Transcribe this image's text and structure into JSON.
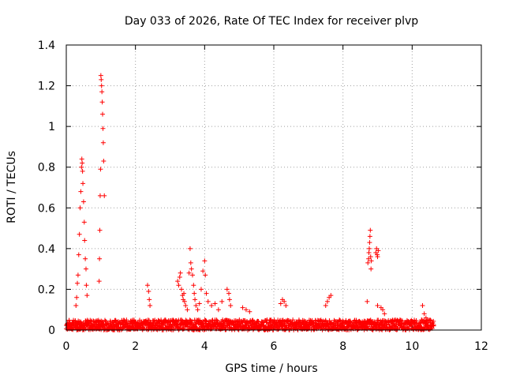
{
  "chart_data": {
    "type": "scatter",
    "title": "Day 033 of 2026, Rate Of TEC Index for receiver plvp",
    "xlabel": "GPS time / hours",
    "ylabel": "ROTI / TECUs",
    "xlim": [
      0,
      12
    ],
    "ylim": [
      0,
      1.4
    ],
    "xticks": [
      0,
      2,
      4,
      6,
      8,
      10,
      12
    ],
    "yticks": [
      0,
      0.2,
      0.4,
      0.6,
      0.8,
      1,
      1.2,
      1.4
    ],
    "xtick_labels": [
      "0",
      "2",
      "4",
      "6",
      "8",
      "10",
      "12"
    ],
    "ytick_labels": [
      "0",
      "0.2",
      "0.4",
      "0.6",
      "0.8",
      "1",
      "1.2",
      "1.4"
    ],
    "grid": true,
    "marker": "+",
    "color": "#ff0000",
    "series": [
      {
        "x": [
          0.4,
          0.42,
          0.44,
          0.45,
          0.46,
          0.47,
          0.48,
          0.5,
          0.52,
          0.53,
          0.55,
          0.57,
          0.58,
          0.6,
          0.38,
          0.36,
          0.34,
          0.32,
          0.3,
          0.28,
          1.0,
          1.01,
          1.02,
          1.03,
          1.04,
          1.05,
          1.06,
          1.07,
          1.08,
          1.1,
          0.99,
          0.98,
          0.97,
          0.96,
          0.95,
          2.35,
          2.38,
          2.4,
          2.42,
          3.22,
          3.25,
          3.28,
          3.3,
          3.33,
          3.36,
          3.38,
          3.4,
          3.42,
          3.45,
          3.5,
          3.55,
          3.58,
          3.6,
          3.62,
          3.65,
          3.68,
          3.7,
          3.72,
          3.75,
          3.8,
          3.85,
          3.9,
          3.95,
          4.0,
          4.02,
          4.05,
          4.1,
          4.2,
          4.3,
          4.4,
          4.5,
          4.65,
          4.7,
          4.72,
          4.75,
          5.1,
          5.2,
          5.3,
          6.2,
          6.25,
          6.3,
          6.35,
          7.5,
          7.55,
          7.6,
          7.65,
          8.72,
          8.74,
          8.75,
          8.76,
          8.77,
          8.78,
          8.79,
          8.8,
          8.81,
          8.82,
          8.95,
          8.97,
          8.99,
          9.0,
          9.02,
          8.7,
          9.0,
          9.1,
          9.15,
          9.2,
          10.3,
          10.35,
          10.4,
          10.45
        ],
        "y": [
          0.6,
          0.68,
          0.8,
          0.84,
          0.82,
          0.78,
          0.72,
          0.63,
          0.53,
          0.44,
          0.35,
          0.3,
          0.22,
          0.17,
          0.47,
          0.37,
          0.27,
          0.23,
          0.16,
          0.12,
          1.25,
          1.23,
          1.2,
          1.17,
          1.12,
          1.06,
          0.99,
          0.92,
          0.83,
          0.66,
          0.79,
          0.66,
          0.49,
          0.35,
          0.24,
          0.22,
          0.19,
          0.15,
          0.12,
          0.24,
          0.22,
          0.26,
          0.28,
          0.2,
          0.17,
          0.15,
          0.18,
          0.14,
          0.12,
          0.1,
          0.28,
          0.4,
          0.33,
          0.3,
          0.27,
          0.22,
          0.18,
          0.15,
          0.12,
          0.1,
          0.13,
          0.2,
          0.29,
          0.34,
          0.27,
          0.18,
          0.14,
          0.12,
          0.13,
          0.1,
          0.14,
          0.2,
          0.18,
          0.15,
          0.12,
          0.11,
          0.1,
          0.09,
          0.13,
          0.15,
          0.14,
          0.12,
          0.12,
          0.14,
          0.16,
          0.17,
          0.33,
          0.35,
          0.38,
          0.4,
          0.43,
          0.46,
          0.49,
          0.36,
          0.3,
          0.34,
          0.38,
          0.4,
          0.37,
          0.36,
          0.39,
          0.14,
          0.12,
          0.11,
          0.1,
          0.08,
          0.12,
          0.08,
          0.06,
          0.05
        ]
      }
    ],
    "baseline_band": {
      "x_range": [
        0,
        10.6
      ],
      "y_range": [
        0.0,
        0.05
      ],
      "x_step": 0.02
    }
  }
}
